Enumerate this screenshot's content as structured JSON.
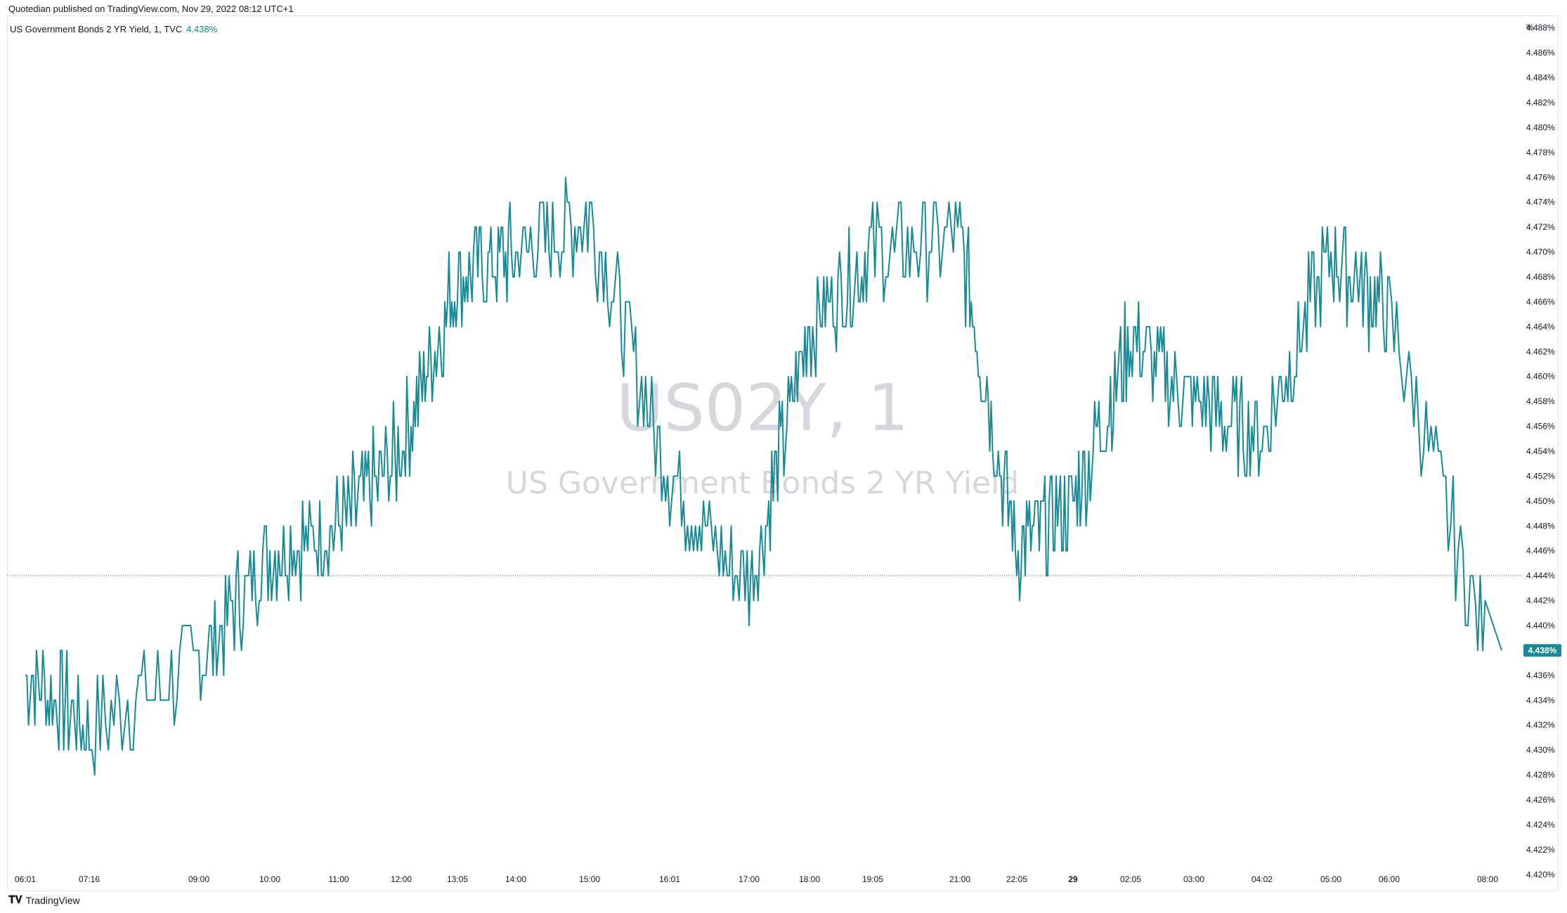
{
  "published": "Quotedian published on TradingView.com, Nov 29, 2022 08:12 UTC+1",
  "header": {
    "symbol_desc": "US Government Bonds 2 YR Yield, 1, TVC",
    "last_value": "4.438%"
  },
  "watermark": {
    "line1": "US02Y, 1",
    "line2": "US Government Bonds 2 YR Yield"
  },
  "y_unit": "%",
  "footer": {
    "brand": "TradingView"
  },
  "colors": {
    "line": "#1a8a96",
    "price_tag": "#1a8a96",
    "grid_text": "#131722"
  },
  "chart_data": {
    "type": "line",
    "title": "US Government Bonds 2 YR Yield, 1, TVC",
    "series": [
      {
        "name": "US Government Bonds 2 YR Yield",
        "x": [
          "06:01",
          "07:16",
          "09:00",
          "10:00",
          "11:00",
          "12:00",
          "13:05",
          "14:00",
          "15:00",
          "16:01",
          "17:00",
          "18:00",
          "19:05",
          "21:00",
          "22:05",
          "29",
          "02:05",
          "03:00",
          "04:02",
          "05:00",
          "06:00",
          "08:00"
        ],
        "values": [
          4.436,
          4.432,
          4.437,
          4.446,
          4.448,
          4.454,
          4.468,
          4.47,
          4.473,
          4.452,
          4.443,
          4.464,
          4.47,
          4.471,
          4.446,
          4.45,
          4.463,
          4.458,
          4.455,
          4.47,
          4.465,
          4.438
        ]
      }
    ],
    "x_ticks": [
      "06:01",
      "07:16",
      "09:00",
      "10:00",
      "11:00",
      "12:00",
      "13:05",
      "14:00",
      "15:00",
      "16:01",
      "17:00",
      "18:00",
      "19:05",
      "21:00",
      "22:05",
      "29",
      "02:05",
      "03:00",
      "04:02",
      "05:00",
      "06:00",
      "08:00"
    ],
    "y_ticks": [
      "4.488%",
      "4.486%",
      "4.484%",
      "4.482%",
      "4.480%",
      "4.478%",
      "4.476%",
      "4.474%",
      "4.472%",
      "4.470%",
      "4.468%",
      "4.466%",
      "4.464%",
      "4.462%",
      "4.460%",
      "4.458%",
      "4.456%",
      "4.454%",
      "4.452%",
      "4.450%",
      "4.448%",
      "4.446%",
      "4.444%",
      "4.442%",
      "4.440%",
      "4.436%",
      "4.434%",
      "4.432%",
      "4.430%",
      "4.428%",
      "4.426%",
      "4.424%",
      "4.422%",
      "4.420%"
    ],
    "ylim": [
      4.419,
      4.489
    ],
    "reference_line": 4.444,
    "last_price_label": "4.438%"
  }
}
